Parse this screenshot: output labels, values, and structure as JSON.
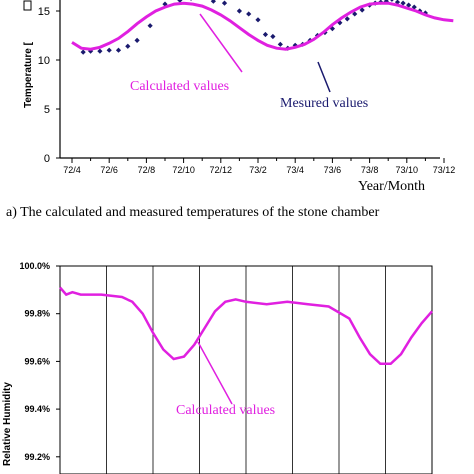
{
  "chart_data": [
    {
      "type": "line",
      "ylabel": "Temperature [",
      "xlabel": "Year/Month",
      "caption": "a)   The calculated and measured temperatures of the stone chamber",
      "x_ticks": [
        "72/4",
        "72/6",
        "72/8",
        "72/10",
        "72/12",
        "73/2",
        "73/4",
        "73/6",
        "73/8",
        "73/10",
        "73/12"
      ],
      "y_ticks": [
        "0",
        "5",
        "10",
        "15"
      ],
      "ylim": [
        0,
        17.5
      ],
      "annotations": [
        {
          "text": "Calculated values",
          "color": "#e020e0"
        },
        {
          "text": "Mesured values",
          "color": "#1a1a6e"
        }
      ],
      "series": [
        {
          "name": "Calculated values",
          "color": "#e020e0",
          "x": [
            0,
            0.5,
            1,
            1.5,
            2,
            2.5,
            3,
            3.5,
            4,
            4.5,
            5,
            5.5,
            6,
            6.5,
            7,
            7.5,
            8,
            8.5,
            9,
            9.5,
            10,
            10.5,
            11,
            11.5,
            12,
            12.5,
            13,
            13.5,
            14,
            14.5,
            15,
            15.5,
            16,
            16.5,
            17,
            17.5,
            18,
            18.5,
            19,
            19.5,
            20,
            20.5
          ],
          "y": [
            11.8,
            11.2,
            11.1,
            11.3,
            11.7,
            12.2,
            12.9,
            13.7,
            14.4,
            15.0,
            15.4,
            15.7,
            15.8,
            15.7,
            15.5,
            15.1,
            14.6,
            14.0,
            13.3,
            12.6,
            12.0,
            11.5,
            11.2,
            11.1,
            11.3,
            11.6,
            12.1,
            12.8,
            13.6,
            14.3,
            14.9,
            15.4,
            15.7,
            15.8,
            15.8,
            15.6,
            15.3,
            15.0,
            14.6,
            14.3,
            14.1,
            14.0
          ]
        },
        {
          "name": "Mesured values",
          "color": "#1a1a6e",
          "x": [
            0.6,
            1.0,
            1.5,
            2.0,
            2.5,
            3.0,
            3.5,
            4.2,
            5.0,
            5.8,
            6.4,
            7.6,
            8.2,
            9.0,
            9.5,
            10.0,
            10.4,
            10.8,
            11.2,
            11.6,
            12.0,
            12.4,
            12.8,
            13.2,
            13.6,
            14.0,
            14.4,
            14.8,
            15.2,
            15.6,
            16.0,
            16.3,
            16.6,
            16.9,
            17.2,
            17.5,
            17.8,
            18.1,
            18.4,
            18.7,
            19.0
          ],
          "y": [
            10.8,
            10.9,
            10.9,
            11.0,
            11.0,
            11.4,
            12.0,
            13.5,
            15.7,
            16.1,
            16.3,
            16.0,
            15.8,
            15.0,
            14.7,
            14.1,
            12.6,
            12.4,
            11.6,
            11.2,
            11.5,
            11.6,
            12.0,
            12.5,
            12.8,
            13.2,
            13.8,
            14.2,
            14.7,
            15.1,
            15.6,
            15.8,
            15.9,
            16.0,
            16.2,
            15.9,
            15.8,
            15.6,
            15.4,
            15.0,
            14.8
          ]
        }
      ]
    },
    {
      "type": "line",
      "ylabel": "Relative Humidity",
      "y_ticks": [
        "99.2%",
        "99.4%",
        "99.6%",
        "99.8%",
        "100.0%"
      ],
      "ylim": [
        99.2,
        100.0
      ],
      "annotations": [
        {
          "text": "Calculated values",
          "color": "#e020e0"
        }
      ],
      "series": [
        {
          "name": "Calculated values",
          "color": "#e020e0",
          "x": [
            0,
            0.3,
            0.6,
            1,
            2,
            3,
            3.5,
            4,
            4.5,
            5,
            5.5,
            6,
            6.5,
            7,
            7.5,
            8,
            8.5,
            9,
            10,
            11,
            12,
            13,
            14,
            14.5,
            15,
            15.5,
            16,
            16.5,
            17,
            17.5,
            18
          ],
          "y": [
            99.91,
            99.88,
            99.89,
            99.88,
            99.88,
            99.87,
            99.85,
            99.8,
            99.72,
            99.65,
            99.61,
            99.62,
            99.67,
            99.74,
            99.81,
            99.85,
            99.86,
            99.85,
            99.84,
            99.85,
            99.84,
            99.83,
            99.78,
            99.7,
            99.63,
            99.59,
            99.59,
            99.63,
            99.7,
            99.76,
            99.81
          ]
        }
      ]
    }
  ]
}
